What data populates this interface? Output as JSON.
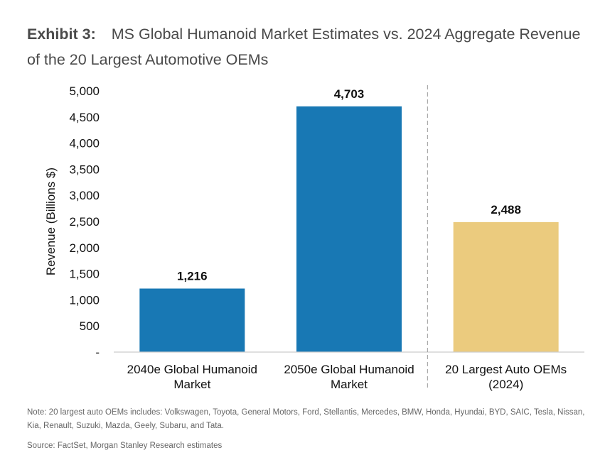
{
  "header": {
    "exhibit": "Exhibit 3:",
    "title": "MS Global Humanoid Market Estimates vs. 2024 Aggregate Revenue of the 20 Largest Automotive OEMs"
  },
  "footer": {
    "note": "Note: 20 largest auto OEMs includes: Volkswagen, Toyota, General Motors, Ford, Stellantis, Mercedes, BMW, Honda, Hyundai, BYD, SAIC, Tesla, Nissan, Kia, Renault, Suzuki, Mazda, Geely, Subaru, and Tata.",
    "source": "Source: FactSet, Morgan Stanley Research estimates"
  },
  "colors": {
    "humanoid_bar": "#1878b4",
    "auto_bar": "#ebcb7e",
    "axis": "#cccccc",
    "divider": "#999999"
  },
  "chart_data": {
    "type": "bar",
    "title": "MS Global Humanoid Market Estimates vs. 2024 Aggregate Revenue of the 20 Largest Automotive OEMs",
    "xlabel": "",
    "ylabel": "Revenue (Billions $)",
    "ylim": [
      0,
      5000
    ],
    "yticks": [
      0,
      500,
      1000,
      1500,
      2000,
      2500,
      3000,
      3500,
      4000,
      4500,
      5000
    ],
    "ytick_labels": [
      "-",
      "500",
      "1,000",
      "1,500",
      "2,000",
      "2,500",
      "3,000",
      "3,500",
      "4,000",
      "4,500",
      "5,000"
    ],
    "grid": false,
    "legend": "none",
    "categories": [
      [
        "2040e Global Humanoid",
        "Market"
      ],
      [
        "2050e Global Humanoid",
        "Market"
      ],
      [
        "20 Largest Auto OEMs",
        "(2024)"
      ]
    ],
    "values": [
      1216,
      4703,
      2488
    ],
    "data_labels": [
      "1,216",
      "4,703",
      "2,488"
    ],
    "bar_colors": [
      "#1878b4",
      "#1878b4",
      "#ebcb7e"
    ],
    "divider_between": [
      1,
      2
    ]
  }
}
